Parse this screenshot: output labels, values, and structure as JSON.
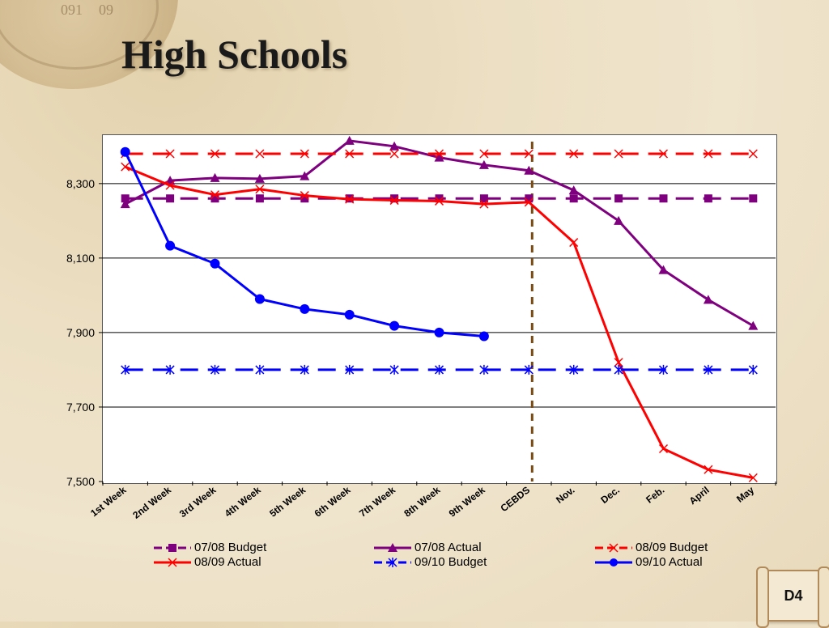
{
  "slide": {
    "title": "High Schools",
    "badge": "D4"
  },
  "decor": {
    "compass_numbers": [
      "091",
      "09"
    ]
  },
  "chart_data": {
    "type": "line",
    "categories": [
      "1st Week",
      "2nd Week",
      "3rd Week",
      "4th Week",
      "5th Week",
      "6th Week",
      "7th Week",
      "8th Week",
      "9th Week",
      "CEBDS",
      "Nov.",
      "Dec.",
      "Feb.",
      "April",
      "May"
    ],
    "ylim": [
      7500,
      8430
    ],
    "yticks": [
      7500,
      7700,
      7900,
      8100,
      8300
    ],
    "ytick_labels": [
      "7,500",
      "7,700",
      "7,900",
      "8,100",
      "8,300"
    ],
    "grid": "horizontal",
    "legend": "bottom",
    "vline_after_category": "CEBDS",
    "series": [
      {
        "name": "07/08 Budget",
        "color": "#7f007f",
        "dashed": true,
        "marker": "square",
        "values": [
          8260,
          8260,
          8260,
          8260,
          8260,
          8260,
          8260,
          8260,
          8260,
          8260,
          8260,
          8260,
          8260,
          8260,
          8260
        ]
      },
      {
        "name": "07/08 Actual",
        "color": "#7f007f",
        "dashed": false,
        "marker": "triangle",
        "values": [
          8245,
          8308,
          8315,
          8313,
          8320,
          8415,
          8400,
          8370,
          8350,
          8335,
          8282,
          8200,
          8068,
          7988,
          7918
        ]
      },
      {
        "name": "08/09 Budget",
        "color": "#ff0000",
        "dashed": true,
        "marker": "x",
        "values": [
          8380,
          8380,
          8380,
          8380,
          8380,
          8380,
          8380,
          8380,
          8380,
          8380,
          8380,
          8380,
          8380,
          8380,
          8380
        ]
      },
      {
        "name": "08/09 Actual",
        "color": "#ff0000",
        "dashed": false,
        "marker": "x",
        "values": [
          8345,
          8295,
          8270,
          8285,
          8268,
          8258,
          8255,
          8253,
          8245,
          8250,
          8142,
          7820,
          7588,
          7532,
          7510
        ]
      },
      {
        "name": "09/10 Budget",
        "color": "#0000ff",
        "dashed": true,
        "marker": "asterisk",
        "values": [
          7800,
          7800,
          7800,
          7800,
          7800,
          7800,
          7800,
          7800,
          7800,
          7800,
          7800,
          7800,
          7800,
          7800,
          7800
        ]
      },
      {
        "name": "09/10 Actual",
        "color": "#0000ff",
        "dashed": false,
        "marker": "circle",
        "values": [
          8385,
          8133,
          8085,
          7990,
          7963,
          7948,
          7918,
          7900,
          7890,
          null,
          null,
          null,
          null,
          null,
          null
        ]
      }
    ]
  }
}
